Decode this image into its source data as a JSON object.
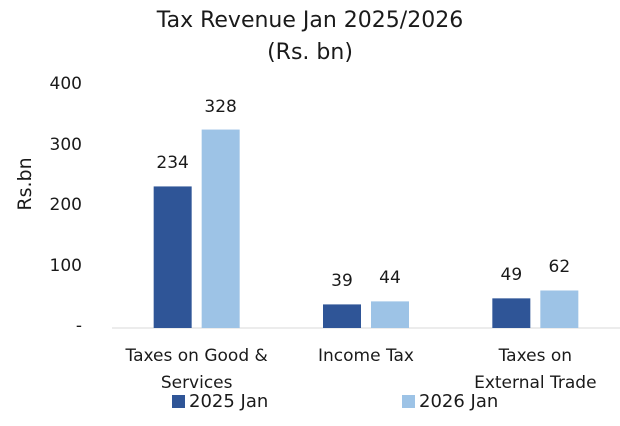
{
  "chart_data": {
    "type": "bar",
    "title": [
      "Tax Revenue Jan  2025/2026",
      "(Rs. bn)"
    ],
    "ylabel": "Rs.bn",
    "ylim": [
      0,
      400
    ],
    "yticks": [
      {
        "value": 0,
        "label": "-"
      },
      {
        "value": 100,
        "label": "100"
      },
      {
        "value": 200,
        "label": "200"
      },
      {
        "value": 300,
        "label": "300"
      },
      {
        "value": 400,
        "label": "400"
      }
    ],
    "categories": [
      "Taxes on Good &\nServices",
      "Income Tax",
      "Taxes on\nExternal Trade"
    ],
    "series": [
      {
        "name": "2025 Jan",
        "color": "#2f5597",
        "values": [
          234,
          39,
          49
        ]
      },
      {
        "name": "2026 Jan",
        "color": "#9dc3e6",
        "values": [
          328,
          44,
          62
        ]
      }
    ],
    "legend_position": "bottom",
    "grid": false
  }
}
